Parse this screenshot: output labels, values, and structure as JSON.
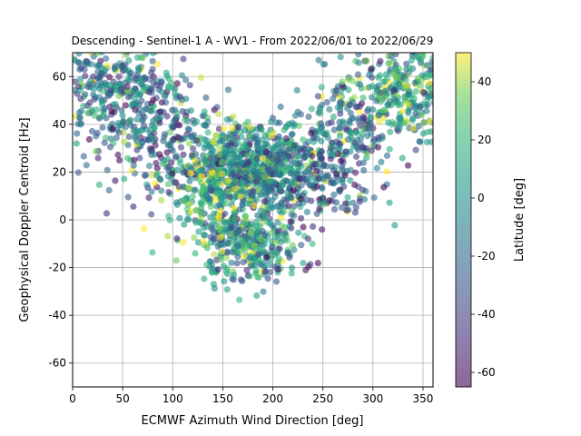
{
  "chart_data": {
    "type": "scatter",
    "title": "Descending - Sentinel-1 A - WV1 - From 2022/06/01 to 2022/06/29",
    "xlabel": "ECMWF Azimuth Wind Direction [deg]",
    "ylabel": "Geophysical Doppler Centroid [Hz]",
    "xlim": [
      0,
      360
    ],
    "ylim": [
      -70,
      70
    ],
    "xticks": [
      0,
      50,
      100,
      150,
      200,
      250,
      300,
      350
    ],
    "yticks": [
      -60,
      -40,
      -20,
      0,
      20,
      40,
      60
    ],
    "grid": true,
    "colorbar": {
      "label": "Latitude [deg]",
      "range": [
        -65,
        50
      ],
      "ticks": [
        -60,
        -40,
        -20,
        0,
        20,
        40
      ],
      "colormap": "viridis",
      "alpha": 0.6
    },
    "clusters": [
      {
        "x": 35,
        "y": 55,
        "sx": 30,
        "sy": 10,
        "lat": -10,
        "n": 280
      },
      {
        "x": 330,
        "y": 55,
        "sx": 28,
        "sy": 10,
        "lat": 5,
        "n": 300
      },
      {
        "x": 90,
        "y": 40,
        "sx": 25,
        "sy": 12,
        "lat": -15,
        "n": 160
      },
      {
        "x": 275,
        "y": 38,
        "sx": 25,
        "sy": 12,
        "lat": -15,
        "n": 180
      },
      {
        "x": 160,
        "y": 22,
        "sx": 28,
        "sy": 9,
        "lat": -5,
        "n": 450
      },
      {
        "x": 215,
        "y": 22,
        "sx": 25,
        "sy": 9,
        "lat": -8,
        "n": 300
      },
      {
        "x": 175,
        "y": -10,
        "sx": 25,
        "sy": 8,
        "lat": -5,
        "n": 320
      },
      {
        "x": 140,
        "y": 10,
        "sx": 25,
        "sy": 12,
        "lat": 20,
        "n": 160
      },
      {
        "x": 250,
        "y": 15,
        "sx": 30,
        "sy": 12,
        "lat": -30,
        "n": 120
      },
      {
        "x": 60,
        "y": 30,
        "sx": 35,
        "sy": 15,
        "lat": -35,
        "n": 80
      }
    ]
  }
}
